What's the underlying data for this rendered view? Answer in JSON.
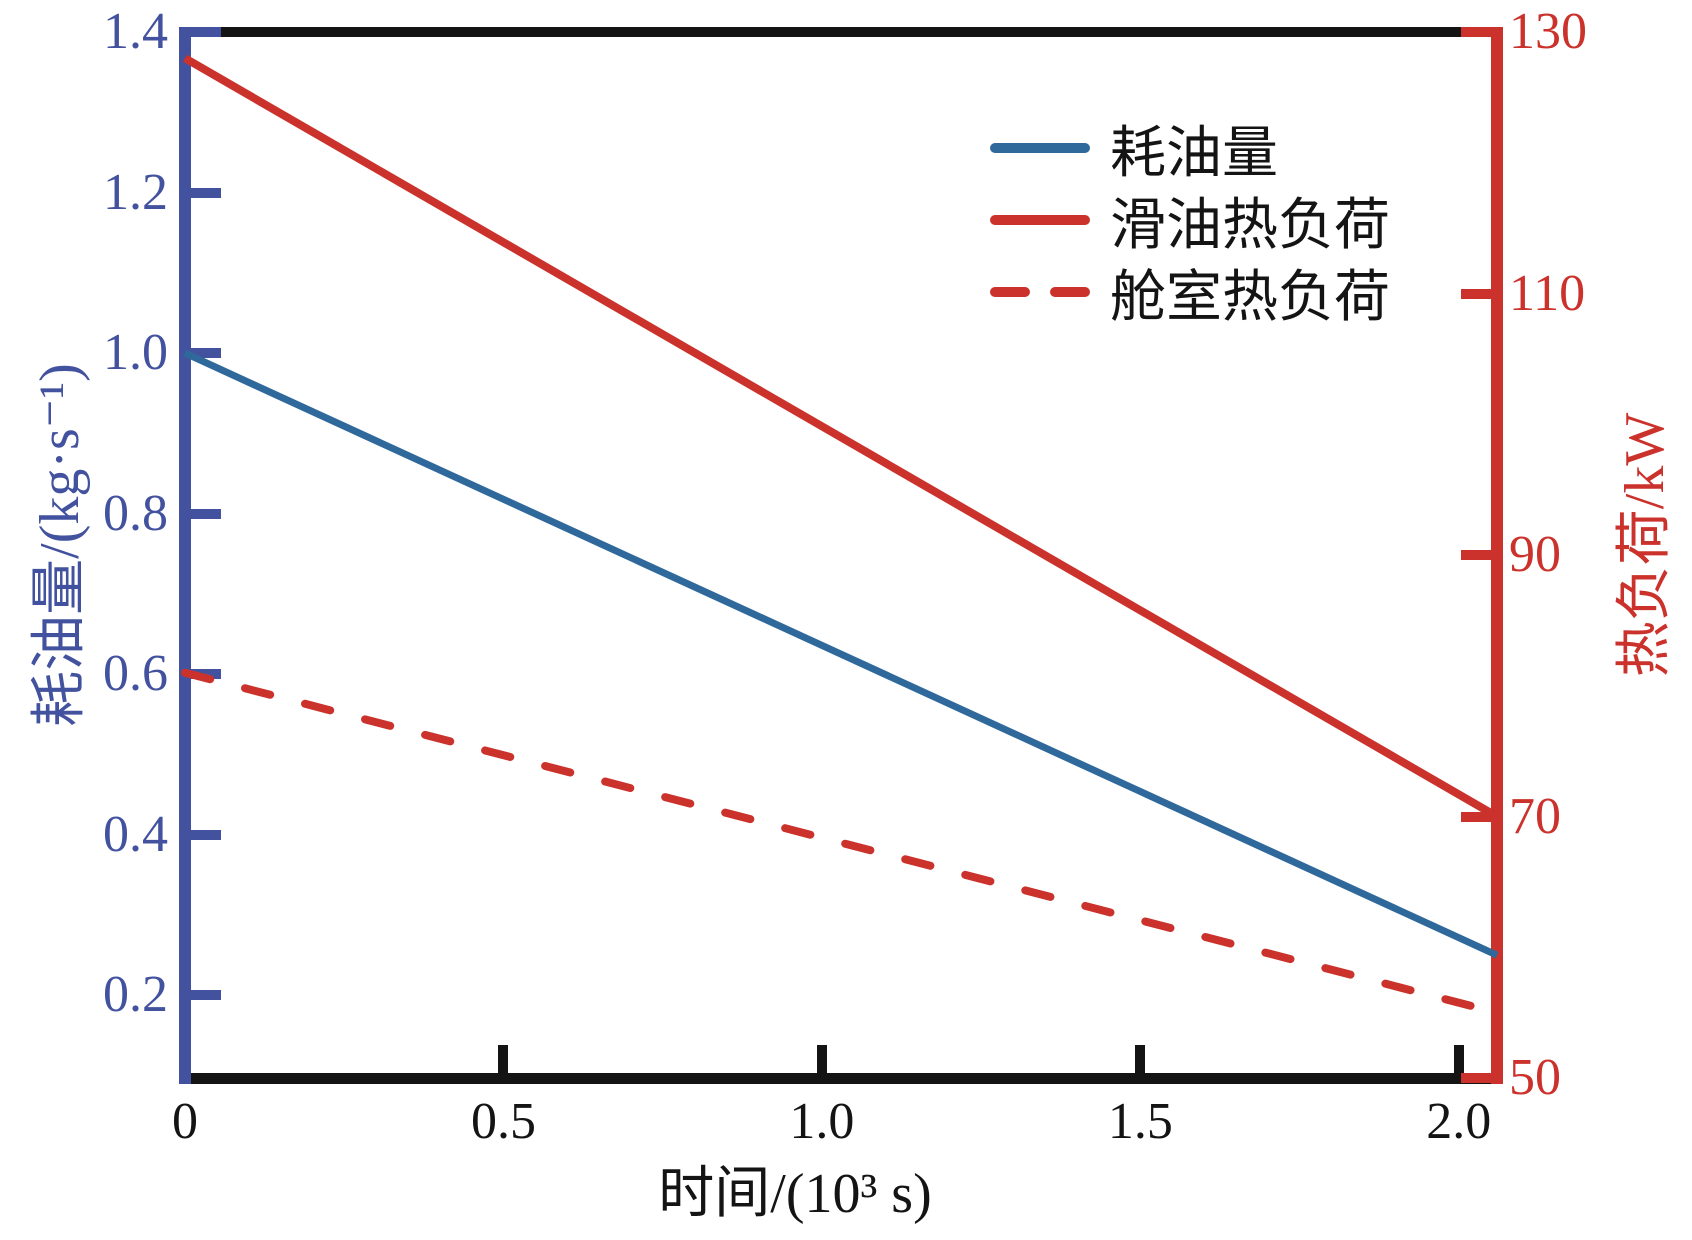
{
  "chart_data": {
    "type": "line",
    "title": "",
    "xlabel": "时间/(10³ s)",
    "background": "#ffffff",
    "grid": false,
    "x_axis": {
      "min": 0,
      "max": 2.06,
      "ticks": [
        "0",
        "0.5",
        "1.0",
        "1.5",
        "2.0"
      ],
      "tick_values": [
        0,
        0.5,
        1.0,
        1.5,
        2.0
      ],
      "color": "#141414"
    },
    "y_left": {
      "label": "耗油量/(kg·s⁻¹)",
      "min": 0.097,
      "max": 1.4,
      "ticks": [
        "1.4",
        "1.2",
        "1.0",
        "0.8",
        "0.6",
        "0.4",
        "0.2"
      ],
      "tick_values": [
        1.4,
        1.2,
        1.0,
        0.8,
        0.6,
        0.4,
        0.2
      ],
      "color": "#43529f"
    },
    "y_right": {
      "label": "热负荷/kW",
      "min": 50,
      "max": 130,
      "ticks": [
        "130",
        "110",
        "90",
        "70",
        "50"
      ],
      "tick_values": [
        130,
        110,
        90,
        70,
        50
      ],
      "color": "#cb322c"
    },
    "series": [
      {
        "name": "耗油量",
        "axis": "left",
        "color": "#2f689b",
        "style": "solid",
        "x": [
          0,
          2.06
        ],
        "y": [
          1.0,
          0.25
        ]
      },
      {
        "name": "滑油热负荷",
        "axis": "right",
        "color": "#cb322c",
        "style": "solid",
        "x": [
          0,
          2.06
        ],
        "y": [
          128,
          70
        ]
      },
      {
        "name": "舱室热负荷",
        "axis": "right",
        "color": "#cb322c",
        "style": "dashed",
        "x": [
          0,
          2.06
        ],
        "y": [
          81,
          55
        ]
      }
    ],
    "legend": {
      "position": "top-right",
      "entries": [
        "耗油量",
        "滑油热负荷",
        "舱室热负荷"
      ]
    }
  }
}
